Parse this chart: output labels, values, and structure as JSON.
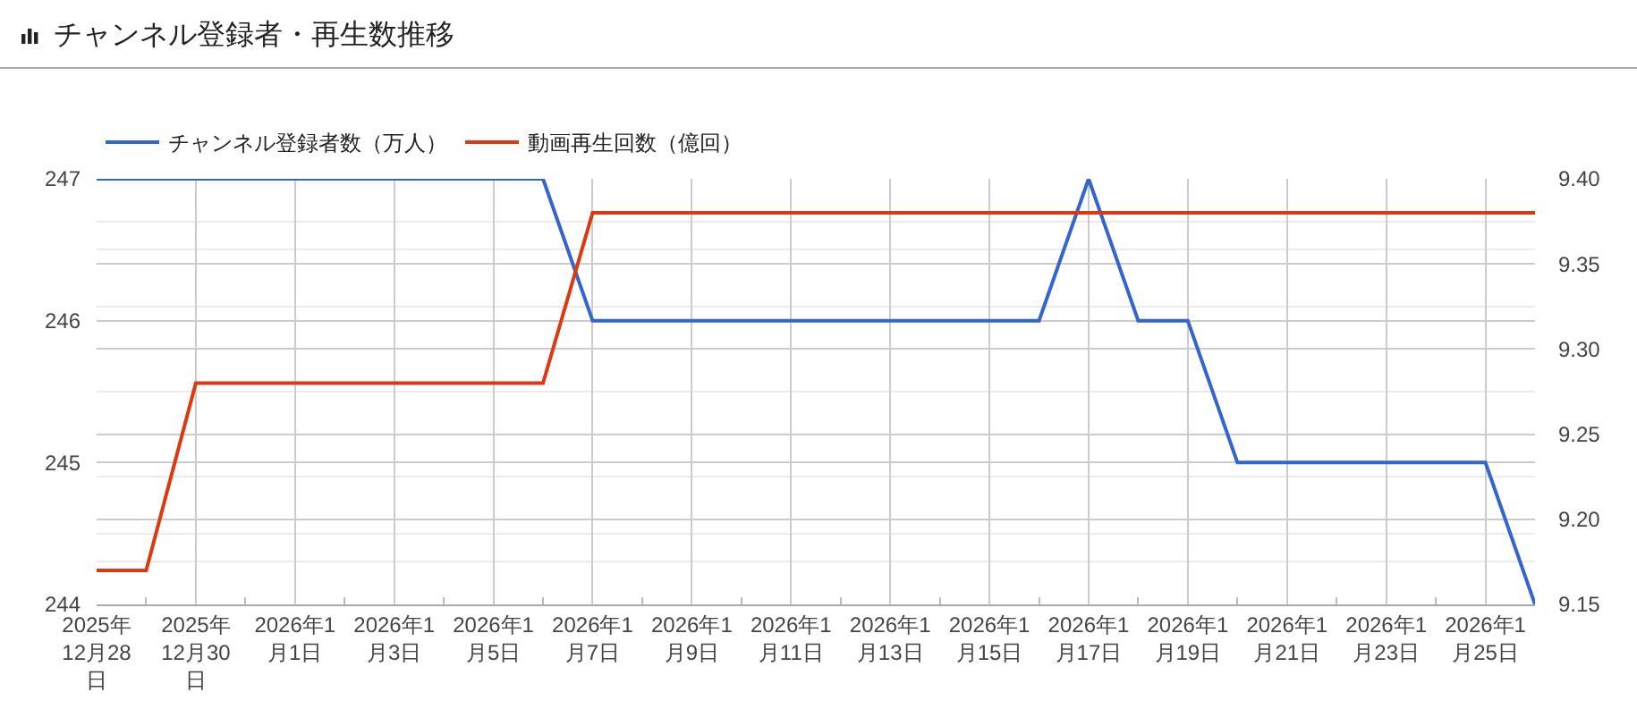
{
  "chart_data": {
    "type": "line",
    "title": "チャンネル登録者・再生数推移",
    "x": [
      "2025-12-28",
      "2025-12-29",
      "2025-12-30",
      "2025-12-31",
      "2026-01-01",
      "2026-01-02",
      "2026-01-03",
      "2026-01-04",
      "2026-01-05",
      "2026-01-06",
      "2026-01-07",
      "2026-01-08",
      "2026-01-09",
      "2026-01-10",
      "2026-01-11",
      "2026-01-12",
      "2026-01-13",
      "2026-01-14",
      "2026-01-15",
      "2026-01-16",
      "2026-01-17",
      "2026-01-18",
      "2026-01-19",
      "2026-01-20",
      "2026-01-21",
      "2026-01-22",
      "2026-01-23",
      "2026-01-24",
      "2026-01-25",
      "2026-01-26"
    ],
    "series": [
      {
        "name": "チャンネル登録者数（万人）",
        "color": "#3366cc",
        "values": [
          247,
          247,
          247,
          247,
          247,
          247,
          247,
          247,
          247,
          247,
          246,
          246,
          246,
          246,
          246,
          246,
          246,
          246,
          246,
          246,
          247,
          246,
          246,
          245,
          245,
          245,
          245,
          245,
          245,
          244
        ]
      },
      {
        "name": "動画再生回数（億回）",
        "color": "#dc3912",
        "axis": "y2",
        "values": [
          9.17,
          9.17,
          9.28,
          9.28,
          9.28,
          9.28,
          9.28,
          9.28,
          9.28,
          9.28,
          9.38,
          9.38,
          9.38,
          9.38,
          9.38,
          9.38,
          9.38,
          9.38,
          9.38,
          9.38,
          9.38,
          9.38,
          9.38,
          9.38,
          9.38,
          9.38,
          9.38,
          9.38,
          9.38,
          9.38
        ]
      }
    ],
    "xlim": [
      "2025-12-28",
      "2026-01-26"
    ],
    "xticks": [
      {
        "value": "2025-12-28",
        "label": "2025年12月28日"
      },
      {
        "value": "2025-12-29",
        "label": null
      },
      {
        "value": "2025-12-30",
        "label": "2025年12月30日"
      },
      {
        "value": "2025-12-31",
        "label": null
      },
      {
        "value": "2026-01-01",
        "label": "2026年1月1日"
      },
      {
        "value": "2026-01-02",
        "label": null
      },
      {
        "value": "2026-01-03",
        "label": "2026年1月3日"
      },
      {
        "value": "2026-01-04",
        "label": null
      },
      {
        "value": "2026-01-05",
        "label": "2026年1月5日"
      },
      {
        "value": "2026-01-06",
        "label": null
      },
      {
        "value": "2026-01-07",
        "label": "2026年1月7日"
      },
      {
        "value": "2026-01-08",
        "label": null
      },
      {
        "value": "2026-01-09",
        "label": "2026年1月9日"
      },
      {
        "value": "2026-01-10",
        "label": null
      },
      {
        "value": "2026-01-11",
        "label": "2026年1月11日"
      },
      {
        "value": "2026-01-12",
        "label": null
      },
      {
        "value": "2026-01-13",
        "label": "2026年1月13日"
      },
      {
        "value": "2026-01-14",
        "label": null
      },
      {
        "value": "2026-01-15",
        "label": "2026年1月15日"
      },
      {
        "value": "2026-01-16",
        "label": null
      },
      {
        "value": "2026-01-17",
        "label": "2026年1月17日"
      },
      {
        "value": "2026-01-18",
        "label": null
      },
      {
        "value": "2026-01-19",
        "label": "2026年1月19日"
      },
      {
        "value": "2026-01-20",
        "label": null
      },
      {
        "value": "2026-01-21",
        "label": "2026年1月21日"
      },
      {
        "value": "2026-01-22",
        "label": null
      },
      {
        "value": "2026-01-23",
        "label": "2026年1月23日"
      },
      {
        "value": "2026-01-24",
        "label": null
      },
      {
        "value": "2026-01-25",
        "label": "2026年1月25日"
      }
    ],
    "ylim": [
      244,
      247
    ],
    "yticks": [
      244,
      245,
      246,
      247
    ],
    "y2lim": [
      9.15,
      9.4
    ],
    "y2ticks": [
      9.15,
      {
        "value": 9.2,
        "label": "9.20"
      },
      9.25,
      {
        "value": 9.3,
        "label": "9.30"
      },
      9.35,
      {
        "value": 9.4,
        "label": "9.40"
      }
    ],
    "grid": true,
    "legend": "top"
  }
}
